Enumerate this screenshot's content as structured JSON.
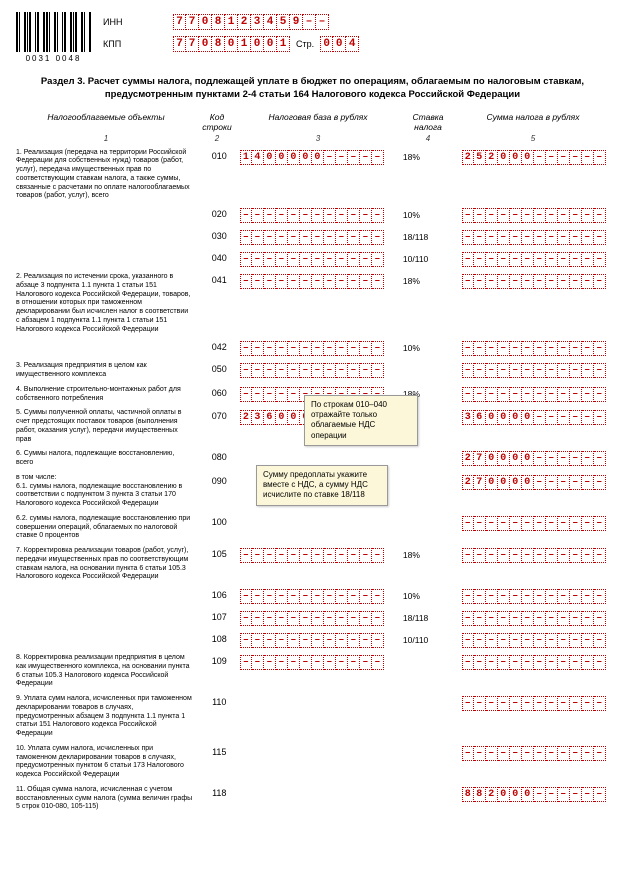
{
  "header": {
    "barcode_text": "0031 0048",
    "inn_label": "ИНН",
    "kpp_label": "КПП",
    "str_label": "Стр.",
    "inn": [
      "7",
      "7",
      "0",
      "8",
      "1",
      "2",
      "3",
      "4",
      "5",
      "9",
      "–",
      "–"
    ],
    "kpp": [
      "7",
      "7",
      "0",
      "8",
      "0",
      "1",
      "0",
      "0",
      "1"
    ],
    "page": [
      "0",
      "0",
      "4"
    ]
  },
  "section_title": "Раздел 3. Расчет суммы налога, подлежащей уплате в бюджет по операциям, облагаемым по налоговым ставкам, предусмотренным пунктами 2-4 статьи 164 Налогового кодекса Российской Федерации",
  "col_headers": {
    "h1": "Налогооблагаемые объекты",
    "h2": "Код строки",
    "h3": "Налоговая база в рублях",
    "h4": "Ставка налога",
    "h5": "Сумма налога в рублях",
    "n1": "1",
    "n2": "2",
    "n3": "3",
    "n4": "4",
    "n5": "5"
  },
  "rows": [
    {
      "desc": "1. Реализация (передача на территории Российской Федерации для собственных нужд) товаров (работ, услуг), передача имущественных прав по соответствующим ставкам налога, а также суммы, связанные с расчетами по оплате налогооблагаемых товаров (работ, услуг), всего",
      "code": "010",
      "base": [
        "1",
        "4",
        "0",
        "0",
        "0",
        "0",
        "0",
        "–",
        "–",
        "–",
        "–",
        "–"
      ],
      "rate": "18%",
      "tax": [
        "2",
        "5",
        "2",
        "0",
        "0",
        "0",
        "–",
        "–",
        "–",
        "–",
        "–",
        "–"
      ]
    },
    {
      "desc": "",
      "code": "020",
      "base": [
        "–",
        "–",
        "–",
        "–",
        "–",
        "–",
        "–",
        "–",
        "–",
        "–",
        "–",
        "–"
      ],
      "rate": "10%",
      "tax": [
        "–",
        "–",
        "–",
        "–",
        "–",
        "–",
        "–",
        "–",
        "–",
        "–",
        "–",
        "–"
      ]
    },
    {
      "desc": "",
      "code": "030",
      "base": [
        "–",
        "–",
        "–",
        "–",
        "–",
        "–",
        "–",
        "–",
        "–",
        "–",
        "–",
        "–"
      ],
      "rate": "18/118",
      "tax": [
        "–",
        "–",
        "–",
        "–",
        "–",
        "–",
        "–",
        "–",
        "–",
        "–",
        "–",
        "–"
      ]
    },
    {
      "desc": "",
      "code": "040",
      "base": [
        "–",
        "–",
        "–",
        "–",
        "–",
        "–",
        "–",
        "–",
        "–",
        "–",
        "–",
        "–"
      ],
      "rate": "10/110",
      "tax": [
        "–",
        "–",
        "–",
        "–",
        "–",
        "–",
        "–",
        "–",
        "–",
        "–",
        "–",
        "–"
      ]
    },
    {
      "desc": "2. Реализация по истечении срока, указанного в абзаце 3 подпункта 1.1 пункта 1 статьи 151 Налогового кодекса Российской Федерации, товаров, в отношении которых при таможенном декларировании был исчислен налог в соответствии с абзацем 1 подпункта 1.1 пункта 1 статьи 151 Налогового кодекса Российской Федерации",
      "code": "041",
      "base": [
        "–",
        "–",
        "–",
        "–",
        "–",
        "–",
        "–",
        "–",
        "–",
        "–",
        "–",
        "–"
      ],
      "rate": "18%",
      "tax": [
        "–",
        "–",
        "–",
        "–",
        "–",
        "–",
        "–",
        "–",
        "–",
        "–",
        "–",
        "–"
      ]
    },
    {
      "desc": "",
      "code": "042",
      "base": [
        "–",
        "–",
        "–",
        "–",
        "–",
        "–",
        "–",
        "–",
        "–",
        "–",
        "–",
        "–"
      ],
      "rate": "10%",
      "tax": [
        "–",
        "–",
        "–",
        "–",
        "–",
        "–",
        "–",
        "–",
        "–",
        "–",
        "–",
        "–"
      ]
    },
    {
      "desc": "3. Реализация предприятия в целом как имущественного комплекса",
      "code": "050",
      "base": [
        "–",
        "–",
        "–",
        "–",
        "–",
        "–",
        "–",
        "–",
        "–",
        "–",
        "–",
        "–"
      ],
      "rate": "",
      "tax": [
        "–",
        "–",
        "–",
        "–",
        "–",
        "–",
        "–",
        "–",
        "–",
        "–",
        "–",
        "–"
      ]
    },
    {
      "desc": "4. Выполнение строительно-монтажных работ для собственного потребления",
      "code": "060",
      "base": [
        "–",
        "–",
        "–",
        "–",
        "–",
        "–",
        "–",
        "–",
        "–",
        "–",
        "–",
        "–"
      ],
      "rate": "18%",
      "tax": [
        "–",
        "–",
        "–",
        "–",
        "–",
        "–",
        "–",
        "–",
        "–",
        "–",
        "–",
        "–"
      ]
    },
    {
      "desc": "5. Суммы полученной оплаты, частичной оплаты в счет предстоящих поставок товаров (выполнения работ, оказания услуг), передачи имущественных прав",
      "code": "070",
      "base": [
        "2",
        "3",
        "6",
        "0",
        "0",
        "0",
        "0",
        "–",
        "–",
        "–",
        "–",
        "–"
      ],
      "rate": "",
      "tax": [
        "3",
        "6",
        "0",
        "0",
        "0",
        "0",
        "–",
        "–",
        "–",
        "–",
        "–",
        "–"
      ]
    },
    {
      "desc": "6. Суммы налога, подлежащие восстановлению, всего",
      "code": "080",
      "base": null,
      "rate": "",
      "tax": [
        "2",
        "7",
        "0",
        "0",
        "0",
        "0",
        "–",
        "–",
        "–",
        "–",
        "–",
        "–"
      ]
    },
    {
      "desc": "в том числе:\n6.1. суммы налога, подлежащие восстановлению в соответствии с подпунктом 3 пункта 3 статьи 170 Налогового кодекса Российской Федерации",
      "code": "090",
      "base": null,
      "rate": "",
      "tax": [
        "2",
        "7",
        "0",
        "0",
        "0",
        "0",
        "–",
        "–",
        "–",
        "–",
        "–",
        "–"
      ]
    },
    {
      "desc": "6.2. суммы налога, подлежащие восстановлению при совершении операций, облагаемых по налоговой ставке 0 процентов",
      "code": "100",
      "base": null,
      "rate": "",
      "tax": [
        "–",
        "–",
        "–",
        "–",
        "–",
        "–",
        "–",
        "–",
        "–",
        "–",
        "–",
        "–"
      ]
    },
    {
      "desc": "7. Корректировка реализации товаров (работ, услуг), передачи имущественных прав по соответствующим ставкам налога, на основании пункта 6 статьи 105.3 Налогового кодекса Российской Федерации",
      "code": "105",
      "base": [
        "–",
        "–",
        "–",
        "–",
        "–",
        "–",
        "–",
        "–",
        "–",
        "–",
        "–",
        "–"
      ],
      "rate": "18%",
      "tax": [
        "–",
        "–",
        "–",
        "–",
        "–",
        "–",
        "–",
        "–",
        "–",
        "–",
        "–",
        "–"
      ]
    },
    {
      "desc": "",
      "code": "106",
      "base": [
        "–",
        "–",
        "–",
        "–",
        "–",
        "–",
        "–",
        "–",
        "–",
        "–",
        "–",
        "–"
      ],
      "rate": "10%",
      "tax": [
        "–",
        "–",
        "–",
        "–",
        "–",
        "–",
        "–",
        "–",
        "–",
        "–",
        "–",
        "–"
      ]
    },
    {
      "desc": "",
      "code": "107",
      "base": [
        "–",
        "–",
        "–",
        "–",
        "–",
        "–",
        "–",
        "–",
        "–",
        "–",
        "–",
        "–"
      ],
      "rate": "18/118",
      "tax": [
        "–",
        "–",
        "–",
        "–",
        "–",
        "–",
        "–",
        "–",
        "–",
        "–",
        "–",
        "–"
      ]
    },
    {
      "desc": "",
      "code": "108",
      "base": [
        "–",
        "–",
        "–",
        "–",
        "–",
        "–",
        "–",
        "–",
        "–",
        "–",
        "–",
        "–"
      ],
      "rate": "10/110",
      "tax": [
        "–",
        "–",
        "–",
        "–",
        "–",
        "–",
        "–",
        "–",
        "–",
        "–",
        "–",
        "–"
      ]
    },
    {
      "desc": "8. Корректировка реализации предприятия в целом как имущественного комплекса, на основании пункта 6 статьи 105.3 Налогового кодекса Российской Федерации",
      "code": "109",
      "base": [
        "–",
        "–",
        "–",
        "–",
        "–",
        "–",
        "–",
        "–",
        "–",
        "–",
        "–",
        "–"
      ],
      "rate": "",
      "tax": [
        "–",
        "–",
        "–",
        "–",
        "–",
        "–",
        "–",
        "–",
        "–",
        "–",
        "–",
        "–"
      ]
    },
    {
      "desc": "9. Уплата сумм налога, исчисленных при таможенном декларировании товаров в случаях, предусмотренных абзацем 3 подпункта 1.1 пункта 1 статьи 151 Налогового кодекса Российской Федерации",
      "code": "110",
      "base": null,
      "rate": "",
      "tax": [
        "–",
        "–",
        "–",
        "–",
        "–",
        "–",
        "–",
        "–",
        "–",
        "–",
        "–",
        "–"
      ]
    },
    {
      "desc": "10. Уплата сумм налога, исчисленных при таможенном декларировании товаров в случаях, предусмотренных пунктом 6 статьи 173 Налогового кодекса Российской Федерации",
      "code": "115",
      "base": null,
      "rate": "",
      "tax": [
        "–",
        "–",
        "–",
        "–",
        "–",
        "–",
        "–",
        "–",
        "–",
        "–",
        "–",
        "–"
      ]
    },
    {
      "desc": "11. Общая сумма налога, исчисленная с учетом восстановленных сумм налога (сумма величин графы 5 строк 010-080, 105-115)",
      "code": "118",
      "base": null,
      "rate": "",
      "tax": [
        "8",
        "8",
        "2",
        "0",
        "0",
        "0",
        "–",
        "–",
        "–",
        "–",
        "–",
        "–"
      ]
    }
  ],
  "notes": {
    "note1": "По строкам 010–040 отражайте только облагаемые НДС операции",
    "note2": "Сумму предоплаты укажите вместе с НДС, а сумму НДС исчислите по ставке 18/118"
  },
  "colors": {
    "cell_border": "#c00000",
    "cell_text": "#c00000",
    "note_bg": "#fcf7d9"
  }
}
